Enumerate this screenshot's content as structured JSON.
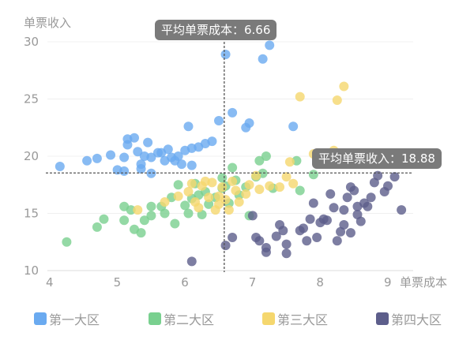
{
  "chart_data": {
    "type": "scatter",
    "title": "",
    "xlabel": "单票成本",
    "ylabel": "单票收入",
    "xlim": [
      4,
      9
    ],
    "ylim": [
      10,
      30
    ],
    "x_ticks": [
      "4",
      "5",
      "6",
      "7",
      "8",
      "9"
    ],
    "y_ticks": [
      "10",
      "15",
      "20",
      "25",
      "30"
    ],
    "grid": true,
    "legend_position": "bottom",
    "annotations": {
      "avg_cost": {
        "label": "平均单票成本：",
        "value": 6.66,
        "text": "平均单票成本：6.66"
      },
      "avg_income": {
        "label": "平均单票收入：",
        "value": 18.88,
        "text": "平均单票收入：18.88"
      }
    },
    "series": [
      {
        "name": "第一大区",
        "color": "#6aaaf0",
        "points": [
          [
            4.15,
            19.1
          ],
          [
            4.55,
            19.6
          ],
          [
            4.7,
            19.8
          ],
          [
            4.9,
            20.1
          ],
          [
            5.0,
            18.8
          ],
          [
            5.1,
            18.7
          ],
          [
            5.1,
            19.9
          ],
          [
            5.15,
            21.0
          ],
          [
            5.15,
            21.5
          ],
          [
            5.25,
            21.6
          ],
          [
            5.3,
            20.4
          ],
          [
            5.35,
            19.3
          ],
          [
            5.35,
            18.9
          ],
          [
            5.4,
            20.0
          ],
          [
            5.45,
            21.2
          ],
          [
            5.5,
            19.9
          ],
          [
            5.5,
            18.5
          ],
          [
            5.6,
            20.3
          ],
          [
            5.65,
            20.3
          ],
          [
            5.7,
            19.6
          ],
          [
            5.75,
            20.6
          ],
          [
            5.8,
            19.9
          ],
          [
            5.85,
            19.6
          ],
          [
            5.9,
            20.0
          ],
          [
            5.95,
            19.3
          ],
          [
            6.0,
            20.5
          ],
          [
            6.1,
            20.7
          ],
          [
            6.2,
            20.8
          ],
          [
            6.3,
            21.1
          ],
          [
            6.05,
            22.6
          ],
          [
            6.1,
            19.2
          ],
          [
            6.4,
            21.3
          ],
          [
            6.5,
            23.1
          ],
          [
            6.6,
            28.9
          ],
          [
            6.7,
            23.8
          ],
          [
            6.9,
            22.5
          ],
          [
            6.95,
            22.9
          ],
          [
            7.15,
            28.5
          ],
          [
            7.25,
            29.7
          ],
          [
            7.6,
            22.6
          ]
        ]
      },
      {
        "name": "第二大区",
        "color": "#79d08f",
        "points": [
          [
            4.25,
            12.5
          ],
          [
            4.7,
            13.8
          ],
          [
            4.8,
            14.5
          ],
          [
            5.1,
            15.6
          ],
          [
            5.1,
            14.4
          ],
          [
            5.2,
            15.3
          ],
          [
            5.25,
            13.6
          ],
          [
            5.35,
            13.3
          ],
          [
            5.4,
            14.4
          ],
          [
            5.5,
            15.6
          ],
          [
            5.5,
            14.8
          ],
          [
            5.65,
            15.6
          ],
          [
            5.7,
            15.0
          ],
          [
            5.8,
            16.4
          ],
          [
            5.85,
            14.1
          ],
          [
            5.9,
            17.5
          ],
          [
            6.0,
            15.7
          ],
          [
            6.05,
            15.0
          ],
          [
            6.1,
            16.3
          ],
          [
            6.15,
            17.6
          ],
          [
            6.2,
            16.6
          ],
          [
            6.25,
            14.9
          ],
          [
            6.3,
            16.9
          ],
          [
            6.35,
            15.8
          ],
          [
            6.45,
            16.4
          ],
          [
            6.55,
            18.1
          ],
          [
            6.55,
            17.2
          ],
          [
            6.6,
            17.4
          ],
          [
            6.65,
            15.9
          ],
          [
            6.7,
            19.0
          ],
          [
            6.75,
            17.9
          ],
          [
            6.8,
            16.6
          ],
          [
            6.9,
            17.3
          ],
          [
            6.95,
            14.8
          ],
          [
            7.05,
            18.2
          ],
          [
            7.15,
            18.5
          ],
          [
            7.1,
            19.6
          ],
          [
            7.2,
            20.0
          ],
          [
            7.3,
            17.2
          ],
          [
            7.7,
            17.0
          ],
          [
            7.65,
            19.6
          ],
          [
            7.9,
            18.4
          ]
        ]
      },
      {
        "name": "第三大区",
        "color": "#f5d76e",
        "points": [
          [
            5.3,
            15.3
          ],
          [
            5.7,
            16.0
          ],
          [
            5.9,
            16.5
          ],
          [
            6.05,
            16.9
          ],
          [
            6.1,
            17.6
          ],
          [
            6.15,
            16.0
          ],
          [
            6.2,
            15.5
          ],
          [
            6.25,
            17.4
          ],
          [
            6.3,
            17.8
          ],
          [
            6.35,
            16.4
          ],
          [
            6.4,
            17.7
          ],
          [
            6.45,
            15.3
          ],
          [
            6.5,
            15.8
          ],
          [
            6.5,
            16.5
          ],
          [
            6.55,
            17.3
          ],
          [
            6.6,
            16.2
          ],
          [
            6.65,
            15.3
          ],
          [
            6.7,
            17.8
          ],
          [
            6.75,
            17.0
          ],
          [
            6.8,
            16.0
          ],
          [
            6.9,
            16.7
          ],
          [
            6.95,
            17.5
          ],
          [
            7.05,
            18.3
          ],
          [
            7.1,
            17.1
          ],
          [
            7.25,
            17.4
          ],
          [
            7.4,
            17.3
          ],
          [
            7.5,
            18.2
          ],
          [
            7.55,
            19.5
          ],
          [
            7.6,
            17.6
          ],
          [
            7.7,
            25.2
          ],
          [
            7.9,
            20.2
          ],
          [
            8.15,
            19.3
          ],
          [
            8.2,
            20.5
          ],
          [
            8.25,
            24.9
          ],
          [
            8.35,
            26.1
          ]
        ]
      },
      {
        "name": "第四大区",
        "color": "#5d5e8b",
        "points": [
          [
            6.1,
            10.8
          ],
          [
            6.6,
            12.2
          ],
          [
            6.7,
            12.9
          ],
          [
            7.0,
            14.8
          ],
          [
            7.05,
            12.9
          ],
          [
            7.1,
            12.6
          ],
          [
            7.2,
            12.0
          ],
          [
            7.2,
            11.6
          ],
          [
            7.35,
            13.0
          ],
          [
            7.4,
            14.0
          ],
          [
            7.45,
            13.5
          ],
          [
            7.5,
            12.3
          ],
          [
            7.5,
            11.5
          ],
          [
            7.7,
            13.5
          ],
          [
            7.75,
            13.7
          ],
          [
            7.8,
            12.6
          ],
          [
            7.85,
            14.5
          ],
          [
            7.9,
            15.9
          ],
          [
            7.95,
            12.9
          ],
          [
            8.0,
            14.2
          ],
          [
            8.05,
            14.5
          ],
          [
            8.1,
            14.4
          ],
          [
            8.15,
            16.7
          ],
          [
            8.2,
            15.5
          ],
          [
            8.25,
            12.6
          ],
          [
            8.3,
            13.4
          ],
          [
            8.35,
            14.0
          ],
          [
            8.4,
            16.4
          ],
          [
            8.45,
            13.3
          ],
          [
            8.45,
            17.3
          ],
          [
            8.5,
            17.0
          ],
          [
            8.55,
            14.9
          ],
          [
            8.6,
            14.3
          ],
          [
            8.65,
            15.9
          ],
          [
            8.75,
            16.4
          ],
          [
            8.8,
            17.7
          ],
          [
            8.85,
            18.3
          ],
          [
            8.95,
            16.9
          ],
          [
            9.0,
            17.4
          ],
          [
            9.1,
            18.2
          ],
          [
            9.2,
            15.3
          ],
          [
            8.35,
            15.3
          ],
          [
            8.55,
            15.6
          ],
          [
            8.7,
            15.6
          ]
        ]
      }
    ]
  },
  "legend": [
    {
      "label": "第一大区",
      "color": "#6aaaf0"
    },
    {
      "label": "第二大区",
      "color": "#79d08f"
    },
    {
      "label": "第三大区",
      "color": "#f5d76e"
    },
    {
      "label": "第四大区",
      "color": "#5d5e8b"
    }
  ]
}
